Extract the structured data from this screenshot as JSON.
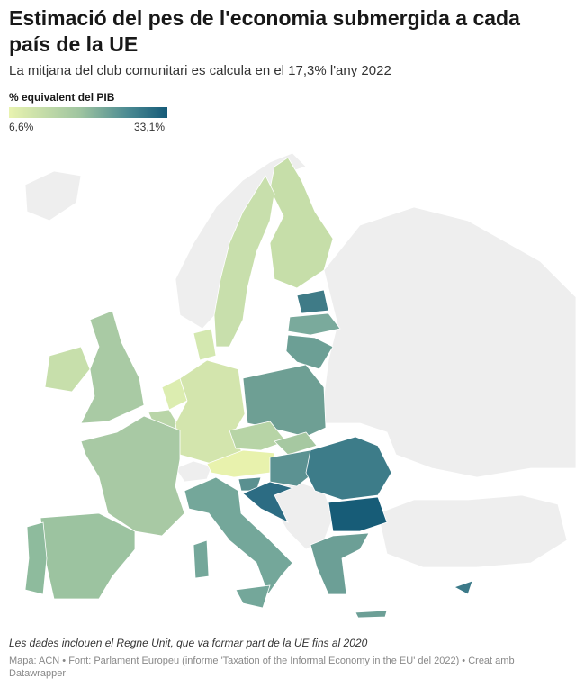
{
  "title": "Estimació del pes de l'economia submergida a cada país de la UE",
  "subtitle": "La mitjana del club comunitari es calcula en el 17,3% l'any 2022",
  "legend": {
    "title": "% equivalent del PIB",
    "min_label": "6,6%",
    "max_label": "33,1%",
    "min_value": 6.6,
    "max_value": 33.1,
    "colors": [
      "#e8f3b0",
      "#9ec4a0",
      "#4b8a92",
      "#155a78"
    ],
    "no_data_color": "#eeeeee"
  },
  "footer": {
    "note": "Les dades inclouen el Regne Unit, que va formar part de la UE fins al 2020",
    "source": "Mapa: ACN • Font: Parlament Europeu (informe 'Taxation of the Informal Economy in the EU' del 2022) • Creat amb Datawrapper"
  }
}
